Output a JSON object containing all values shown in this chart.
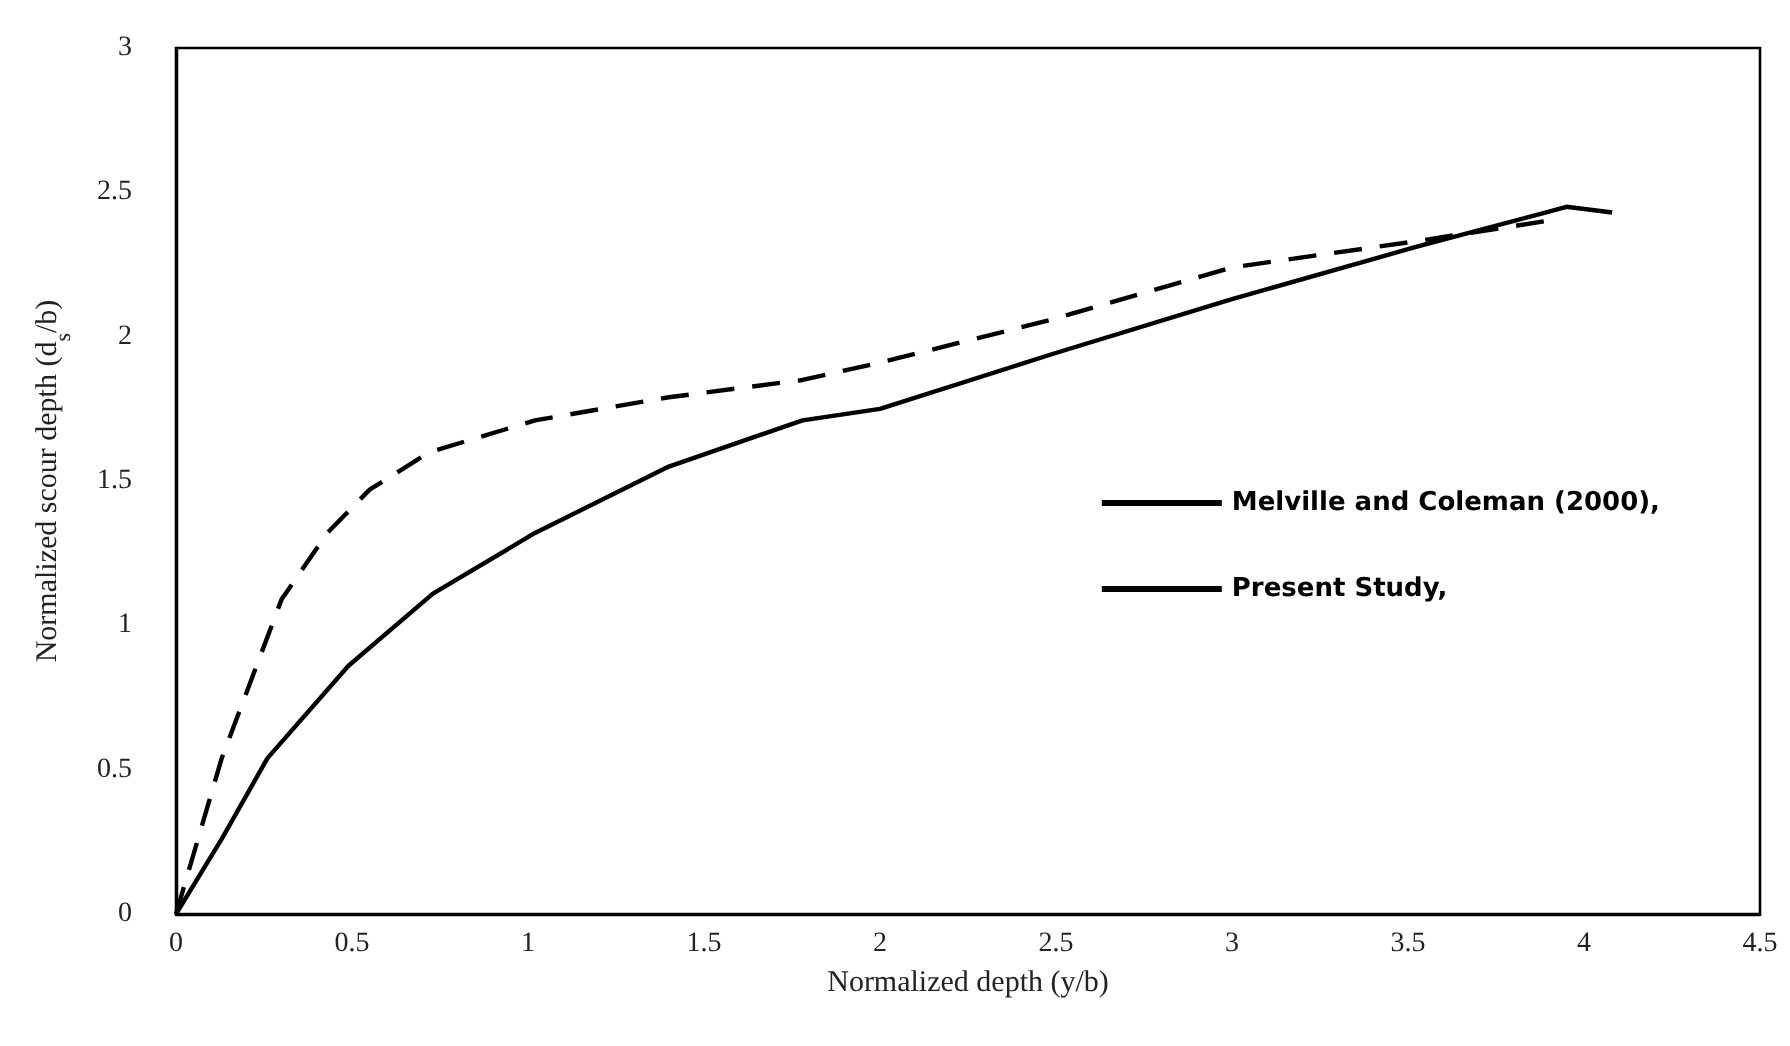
{
  "chart_data": {
    "type": "line",
    "xlabel": "Normalized depth (y/b)",
    "ylabel": "Normalized scour depth (d$_{s}$/b)",
    "xlim": [
      0,
      4.5
    ],
    "xticks": [
      0,
      0.5,
      1,
      1.5,
      2,
      2.5,
      3,
      3.5,
      4,
      4.5
    ],
    "ylim": [
      0,
      3
    ],
    "yticks": [
      0,
      0.5,
      1,
      1.5,
      2,
      2.5,
      3
    ],
    "grid": false,
    "legend": "right",
    "marker": "none",
    "series": [
      {
        "name": "Melville and Coleman (2000),",
        "color": "#000000",
        "line_style": "dashed",
        "x": [
          0,
          0.13,
          0.3,
          0.43,
          0.55,
          0.72,
          1.02,
          1.4,
          1.78,
          2.0,
          2.49,
          3.0,
          3.52,
          3.89
        ],
        "values": [
          0,
          0.54,
          1.09,
          1.32,
          1.47,
          1.6,
          1.71,
          1.79,
          1.85,
          1.91,
          2.06,
          2.24,
          2.33,
          2.4
        ]
      },
      {
        "name": "Present Study,",
        "color": "#000000",
        "line_style": "solid",
        "x": [
          0,
          0.13,
          0.26,
          0.49,
          0.73,
          1.02,
          1.4,
          1.78,
          2.0,
          2.49,
          3.0,
          3.52,
          3.89,
          3.95,
          4.08
        ],
        "values": [
          0,
          0.26,
          0.54,
          0.86,
          1.11,
          1.32,
          1.55,
          1.71,
          1.75,
          1.94,
          2.13,
          2.31,
          2.43,
          2.45,
          2.43
        ]
      }
    ]
  }
}
